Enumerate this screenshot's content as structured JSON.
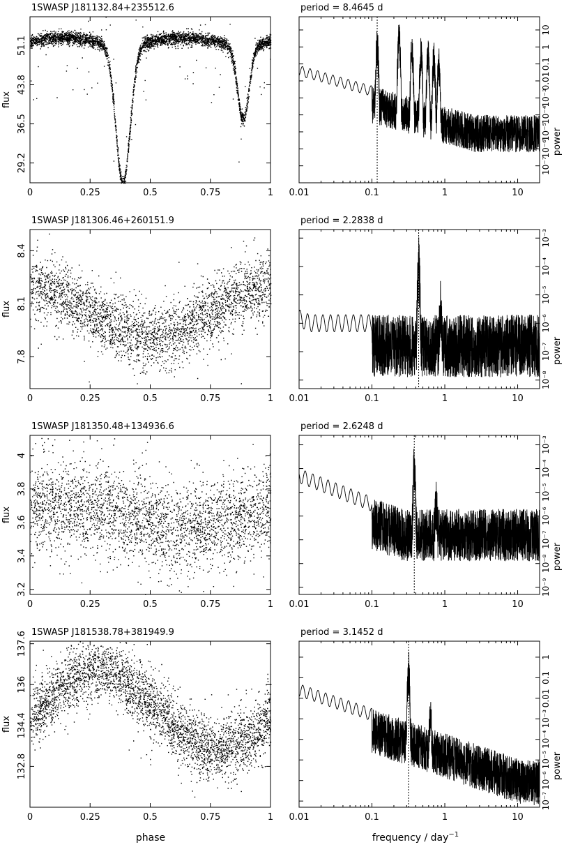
{
  "figure": {
    "x_label_left": "phase",
    "x_label_right": "frequency / day",
    "x_label_right_sup": "−1",
    "y_label_left": "flux",
    "y_label_right": "power",
    "period_prefix": "period =",
    "period_unit": "d"
  },
  "chart_data": [
    {
      "type": "scatter",
      "title": "1SWASP J181132.84+235512.6",
      "xlabel": "",
      "ylabel": "flux",
      "xlim": [
        0,
        1
      ],
      "ylim": [
        25.5,
        56.5
      ],
      "xticks": [
        "0",
        "0.25",
        "0.5",
        "0.75",
        "1"
      ],
      "yticks": [
        29.2,
        36.5,
        43.8,
        51.1
      ],
      "ytick_labels": [
        "29.2",
        "36.5",
        "43.8",
        "51.1"
      ],
      "model": "eclipsing",
      "baseline": 52.0,
      "primary_depth": 26.0,
      "primary_phase": 0.385,
      "primary_width": 0.042,
      "secondary_depth": 14.0,
      "secondary_phase": 0.885,
      "secondary_width": 0.034,
      "scatter": 0.6,
      "n_points": 4000
    },
    {
      "type": "line",
      "title": "period = 8.4645 d",
      "period": "8.4645",
      "xlabel": "",
      "ylabel": "power",
      "xscale": "log",
      "yscale": "log",
      "xlim": [
        0.01,
        20
      ],
      "ylim": [
        1e-08,
        60
      ],
      "xticks": [
        "0.01",
        "0.1",
        "1",
        "10"
      ],
      "yticks": [
        "10⁻⁷",
        "10⁻⁶",
        "10⁻⁵",
        "10⁻⁴",
        "10⁻³",
        "0.01",
        "0.1",
        "1",
        "10"
      ],
      "ytick_values": [
        1e-07,
        1e-06,
        1e-05,
        0.0001,
        0.001,
        0.01,
        0.1,
        1,
        10
      ],
      "peak_frequency": 0.118,
      "peak_power": 12,
      "harmonics": [
        [
          0.236,
          30
        ],
        [
          0.354,
          6
        ],
        [
          0.472,
          4
        ],
        [
          0.59,
          3
        ],
        [
          0.708,
          2
        ],
        [
          0.826,
          1
        ]
      ],
      "low_level": 0.08,
      "noise_level": 0.0001
    },
    {
      "type": "scatter",
      "title": "1SWASP J181306.46+260151.9",
      "xlabel": "",
      "ylabel": "flux",
      "xlim": [
        0,
        1
      ],
      "ylim": [
        7.62,
        8.52
      ],
      "xticks": [
        "0",
        "0.25",
        "0.5",
        "0.75",
        "1"
      ],
      "yticks": [
        7.8,
        8.1,
        8.4
      ],
      "ytick_labels": [
        "7.8",
        "8.1",
        "8.4"
      ],
      "model": "sinusoid",
      "mean": 8.05,
      "amplitude": 0.14,
      "max_phase": 0.0,
      "scatter": 0.09,
      "n_points": 3000
    },
    {
      "type": "line",
      "title": "period = 2.2838 d",
      "period": "2.2838",
      "xlabel": "",
      "ylabel": "power",
      "xscale": "log",
      "yscale": "log",
      "xlim": [
        0.01,
        20
      ],
      "ylim": [
        5e-09,
        0.002
      ],
      "xticks": [
        "0.01",
        "0.1",
        "1",
        "10"
      ],
      "yticks": [
        "10⁻⁸",
        "10⁻⁷",
        "10⁻⁶",
        "10⁻⁵",
        "10⁻⁴",
        "10⁻³"
      ],
      "ytick_values": [
        1e-08,
        1e-07,
        1e-06,
        1e-05,
        0.0001,
        0.001
      ],
      "peak_frequency": 0.438,
      "peak_power": 0.0012,
      "harmonics": [
        [
          0.876,
          4e-05
        ]
      ],
      "low_level": 3e-06,
      "noise_level": 2e-06
    },
    {
      "type": "scatter",
      "title": "1SWASP J181350.48+134936.6",
      "xlabel": "",
      "ylabel": "flux",
      "xlim": [
        0,
        1
      ],
      "ylim": [
        3.17,
        4.12
      ],
      "xticks": [
        "0",
        "0.25",
        "0.5",
        "0.75",
        "1"
      ],
      "yticks": [
        3.2,
        3.4,
        3.6,
        3.8,
        4
      ],
      "ytick_labels": [
        "3.2",
        "3.4",
        "3.6",
        "3.8",
        "4"
      ],
      "model": "sinusoid",
      "mean": 3.64,
      "amplitude": 0.07,
      "max_phase": 0.15,
      "scatter": 0.13,
      "n_points": 3000
    },
    {
      "type": "line",
      "title": "period = 2.6248 d",
      "period": "2.6248",
      "xlabel": "",
      "ylabel": "power",
      "xscale": "log",
      "yscale": "log",
      "xlim": [
        0.01,
        20
      ],
      "ylim": [
        5e-10,
        0.0025
      ],
      "xticks": [
        "0.01",
        "0.1",
        "1",
        "10"
      ],
      "yticks": [
        "10⁻⁹",
        "10⁻⁸",
        "10⁻⁷",
        "10⁻⁶",
        "10⁻⁵",
        "10⁻⁴",
        "10⁻³"
      ],
      "ytick_values": [
        1e-09,
        1e-08,
        1e-07,
        1e-06,
        1e-05,
        0.0001,
        0.001
      ],
      "peak_frequency": 0.381,
      "peak_power": 0.001,
      "harmonics": [
        [
          0.762,
          3e-05
        ]
      ],
      "low_level": 0.0001,
      "noise_level": 2e-06
    },
    {
      "type": "scatter",
      "title": "1SWASP J181538.78+381949.9",
      "xlabel": "",
      "ylabel": "flux",
      "xlim": [
        0,
        1
      ],
      "ylim": [
        131.2,
        137.7
      ],
      "xticks": [
        "0",
        "0.25",
        "0.5",
        "0.75",
        "1"
      ],
      "yticks": [
        132.8,
        134.4,
        136,
        137.6
      ],
      "ytick_labels": [
        "132.8",
        "134.4",
        "136",
        "137.6"
      ],
      "model": "sinusoid",
      "mean": 135.0,
      "amplitude": 1.55,
      "max_phase": 0.28,
      "scatter": 0.6,
      "n_points": 3500
    },
    {
      "type": "line",
      "title": "period = 3.1452 d",
      "period": "3.1452",
      "xlabel": "",
      "ylabel": "power",
      "xscale": "log",
      "yscale": "log",
      "xlim": [
        0.01,
        20
      ],
      "ylim": [
        5e-08,
        6
      ],
      "xticks": [
        "0.01",
        "0.1",
        "1",
        "10"
      ],
      "yticks": [
        "10⁻⁷",
        "10⁻⁶",
        "10⁻⁵",
        "10⁻⁴",
        "10⁻³",
        "0.01",
        "0.1",
        "1"
      ],
      "ytick_values": [
        1e-07,
        1e-06,
        1e-05,
        0.0001,
        0.001,
        0.01,
        0.1,
        1
      ],
      "peak_frequency": 0.318,
      "peak_power": 2.5,
      "harmonics": [
        [
          0.636,
          0.01
        ]
      ],
      "low_level": 0.05,
      "noise_level": 1e-05
    }
  ]
}
